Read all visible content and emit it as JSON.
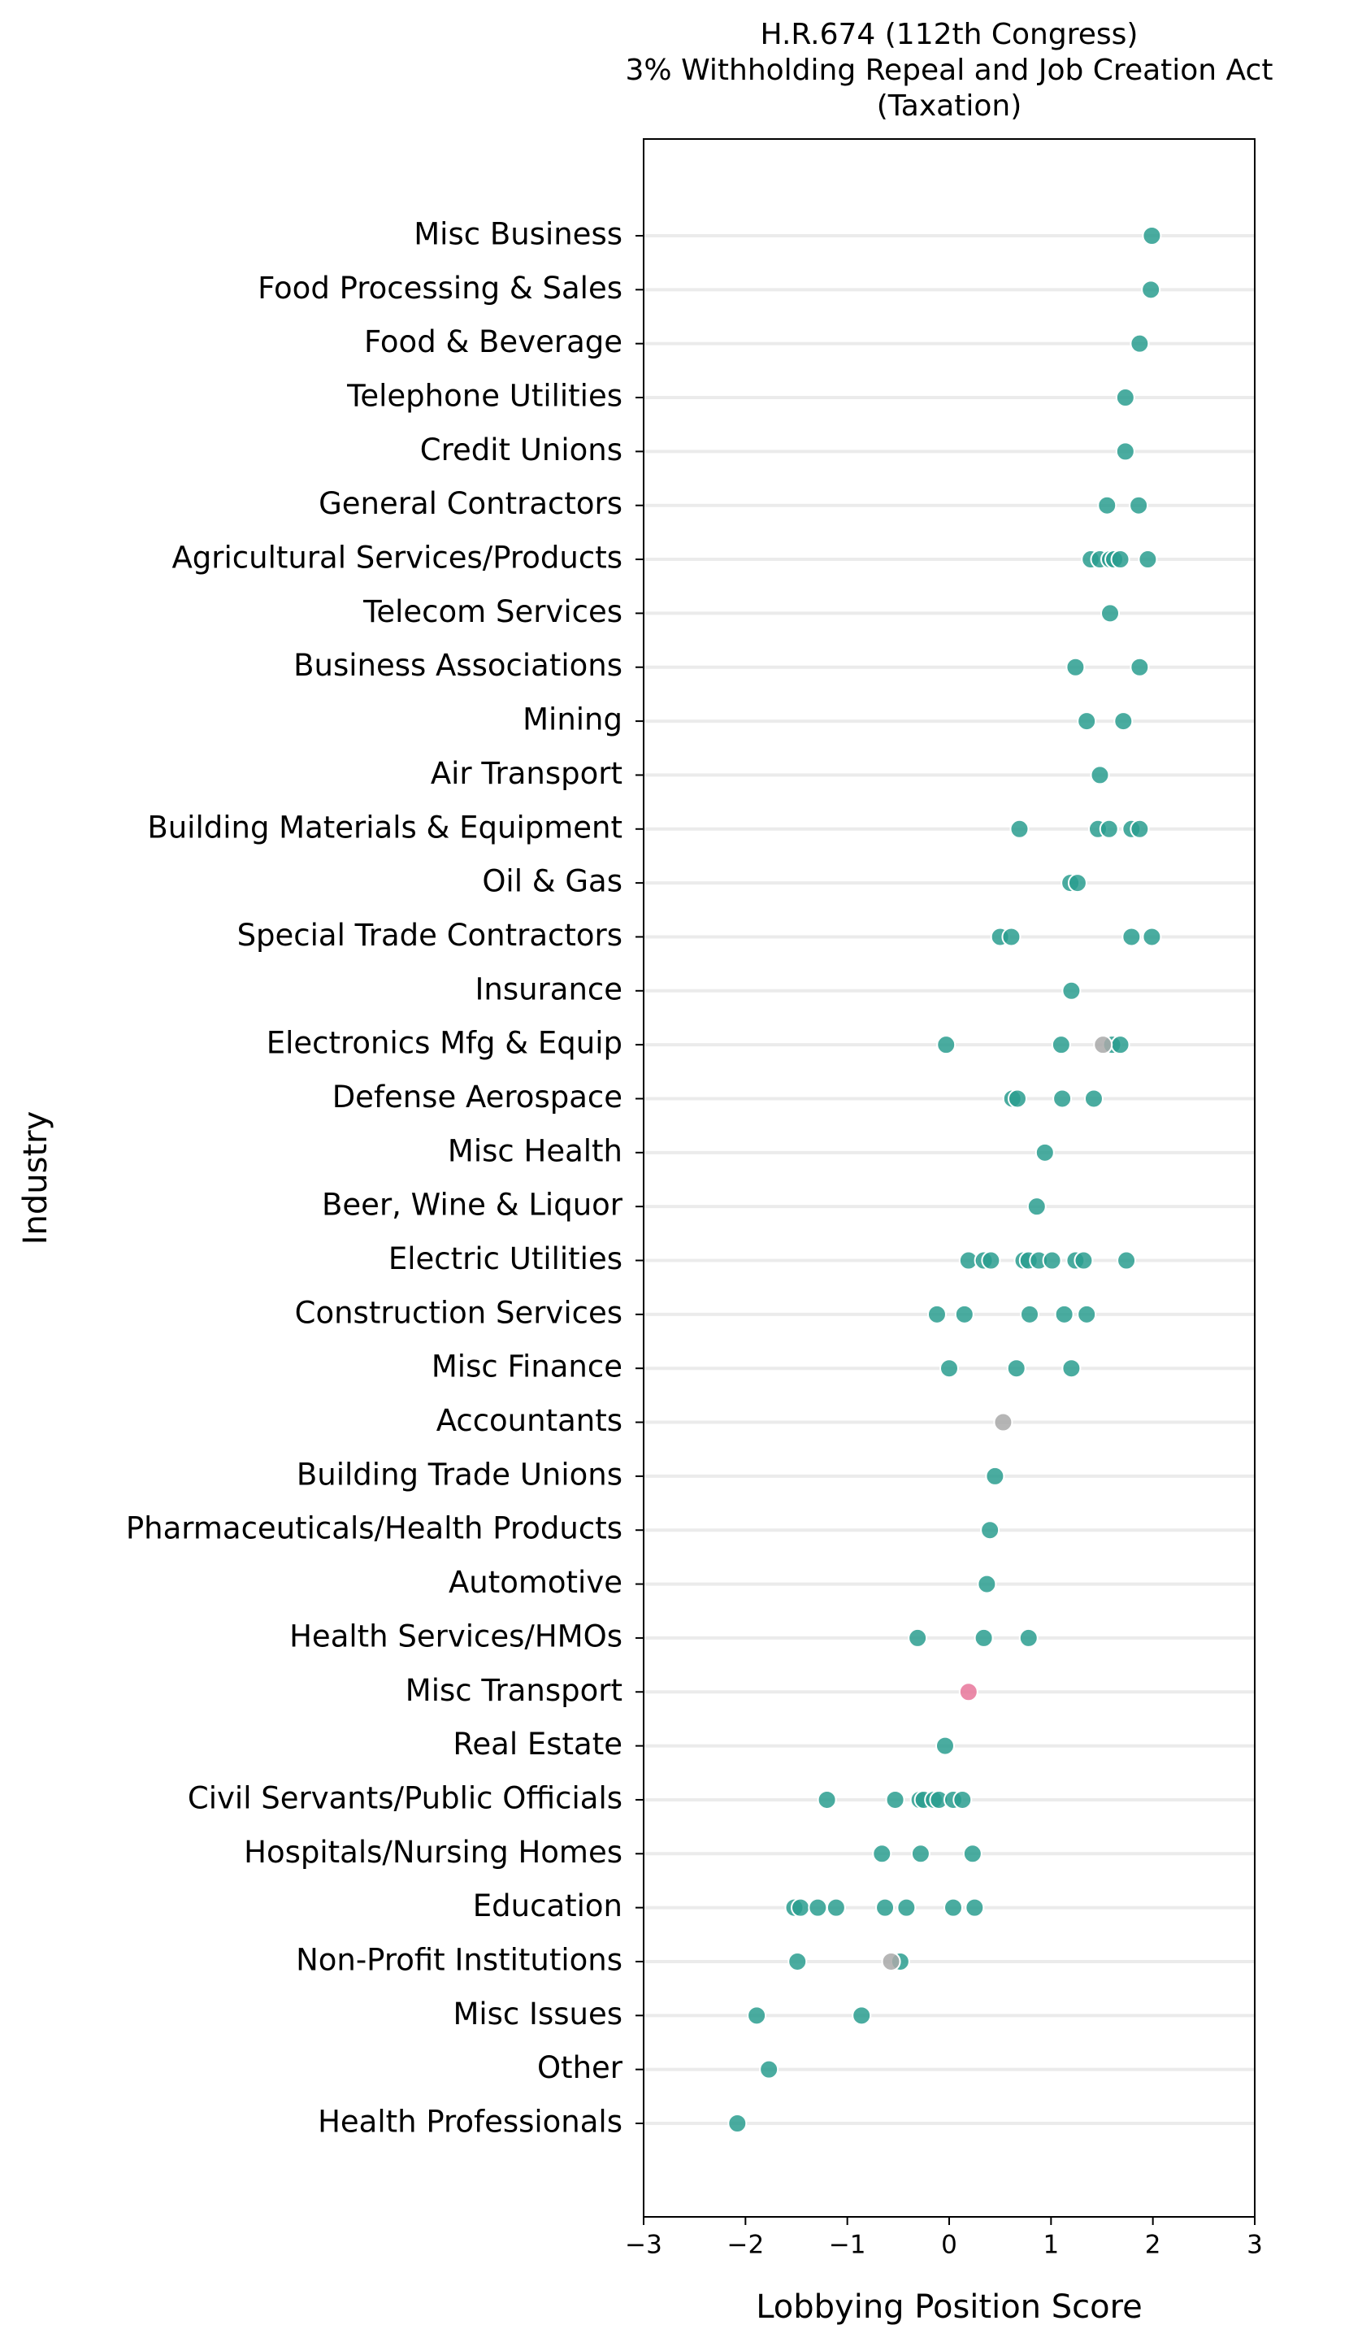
{
  "chart_data": {
    "type": "strip",
    "title": [
      "H.R.674 (112th Congress)",
      "3% Withholding Repeal and Job Creation Act",
      "(Taxation)"
    ],
    "x_label": "Lobbying Position Score",
    "y_label": "Industry",
    "categories": [
      "Misc Business",
      "Food Processing & Sales",
      "Food & Beverage",
      "Telephone Utilities",
      "Credit Unions",
      "General Contractors",
      "Agricultural Services/Products",
      "Telecom Services",
      "Business Associations",
      "Mining",
      "Air Transport",
      "Building Materials & Equipment",
      "Oil & Gas",
      "Special Trade Contractors",
      "Insurance",
      "Electronics Mfg & Equip",
      "Defense Aerospace",
      "Misc Health",
      "Beer, Wine & Liquor",
      "Electric Utilities",
      "Construction Services",
      "Misc Finance",
      "Accountants",
      "Building Trade Unions",
      "Pharmaceuticals/Health Products",
      "Automotive",
      "Health Services/HMOs",
      "Misc Transport",
      "Real Estate",
      "Civil Servants/Public Officials",
      "Hospitals/Nursing Homes",
      "Education",
      "Non-Profit Institutions",
      "Misc Issues",
      "Other",
      "Health Professionals"
    ],
    "series": [
      {
        "color": "#2a9d8f",
        "values": [
          [
            1.99
          ],
          [
            1.98
          ],
          [
            1.87
          ],
          [
            1.73
          ],
          [
            1.73
          ],
          [
            1.55,
            1.86
          ],
          [
            1.39,
            1.48,
            1.58,
            1.62,
            1.68,
            1.95
          ],
          [
            1.58
          ],
          [
            1.24,
            1.87
          ],
          [
            1.35,
            1.71
          ],
          [
            1.48
          ],
          [
            0.69,
            1.46,
            1.57,
            1.79,
            1.87
          ],
          [
            1.19,
            1.26
          ],
          [
            0.5,
            0.61,
            1.79,
            1.99
          ],
          [
            1.2
          ],
          [
            -0.03,
            1.1,
            1.6,
            1.68
          ],
          [
            0.62,
            0.67,
            1.11,
            1.42
          ],
          [
            0.94
          ],
          [
            0.86
          ],
          [
            0.19,
            0.34,
            0.41,
            0.73,
            0.78,
            0.88,
            1.01,
            1.24,
            1.32,
            1.74
          ],
          [
            -0.12,
            0.15,
            0.79,
            1.13,
            1.35
          ],
          [
            0.0,
            0.66,
            1.2
          ],
          [],
          [
            0.45
          ],
          [
            0.4
          ],
          [
            0.37
          ],
          [
            -0.31,
            0.34,
            0.78
          ],
          [],
          [
            -0.04
          ],
          [
            -1.2,
            -0.53,
            -0.29,
            -0.25,
            -0.15,
            -0.1,
            0.04,
            0.13
          ],
          [
            -0.66,
            -0.28,
            0.23
          ],
          [
            -1.52,
            -1.46,
            -1.29,
            -1.11,
            -0.63,
            -0.42,
            0.04,
            0.25
          ],
          [
            -1.49,
            -0.48
          ],
          [
            -1.89,
            -0.86
          ],
          [
            -1.77
          ],
          [
            -2.08
          ]
        ]
      },
      {
        "color": "#a9a9a9",
        "values": [
          [],
          [],
          [],
          [],
          [],
          [],
          [],
          [],
          [],
          [],
          [],
          [],
          [],
          [],
          [],
          [
            1.51
          ],
          [],
          [],
          [],
          [],
          [],
          [],
          [
            0.53
          ],
          [],
          [],
          [],
          [],
          [],
          [],
          [],
          [],
          [],
          [
            -0.57
          ],
          [],
          [],
          []
        ]
      },
      {
        "color": "#e7759a",
        "values": [
          [],
          [],
          [],
          [],
          [],
          [],
          [],
          [],
          [],
          [],
          [],
          [],
          [],
          [],
          [],
          [],
          [],
          [],
          [],
          [],
          [],
          [],
          [],
          [],
          [],
          [],
          [],
          [
            0.19
          ],
          [],
          [],
          [],
          [],
          [],
          [],
          [],
          []
        ]
      }
    ],
    "xlim": [
      -3,
      3
    ],
    "xticks": [
      {
        "value": -3,
        "label": "−3"
      },
      {
        "value": -2,
        "label": "−2"
      },
      {
        "value": -1,
        "label": "−1"
      },
      0,
      1,
      2,
      3
    ],
    "grid": true
  }
}
